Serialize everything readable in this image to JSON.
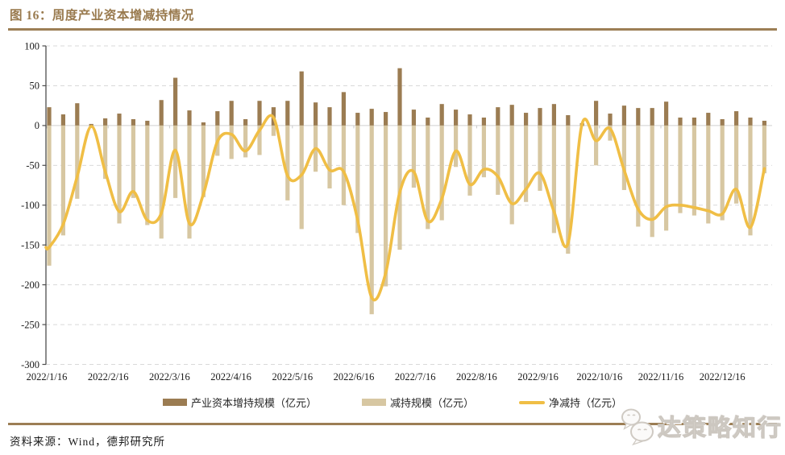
{
  "header": {
    "title": "图 16：周度产业资本增减持情况"
  },
  "source": {
    "text": "资料来源：Wind，德邦研究所"
  },
  "watermark": {
    "text": "达策略知行",
    "icon": "wechat-chat-bubbles-icon"
  },
  "colors": {
    "accent_brown": "#9C7E55",
    "title_brown": "#997A4E",
    "increase_bar": "#9B7C52",
    "decrease_bar": "#D7C7A2",
    "net_line": "#F0BE45",
    "grid": "#D9D9D9",
    "axis": "#4D4D4D",
    "tick_text": "#1A1A1A"
  },
  "chart_data": {
    "type": "bar",
    "subtype": "weekly paired positive/negative bars with smoothed net line",
    "title": "周度产业资本增减持情况",
    "xlabel": "",
    "ylabel": "",
    "ylim": [
      -300,
      100
    ],
    "y_ticks": [
      100,
      50,
      0,
      -50,
      -100,
      -150,
      -200,
      -250,
      -300
    ],
    "x_tick_labels": [
      "2022/1/16",
      "2022/2/16",
      "2022/3/16",
      "2022/4/16",
      "2022/5/16",
      "2022/6/16",
      "2022/7/16",
      "2022/8/16",
      "2022/9/16",
      "2022/10/16",
      "2022/11/16",
      "2022/12/16"
    ],
    "grid": "horizontal dashed, solid light zero line",
    "legend_position": "bottom",
    "n_weeks": 52,
    "series": [
      {
        "name": "产业资本增持规模（亿元）",
        "type": "bar",
        "color": "#9B7C52",
        "values": [
          23,
          14,
          28,
          2,
          9,
          15,
          8,
          6,
          32,
          60,
          19,
          4,
          18,
          31,
          8,
          31,
          23,
          31,
          68,
          29,
          23,
          42,
          16,
          21,
          17,
          72,
          20,
          10,
          27,
          20,
          14,
          10,
          23,
          26,
          16,
          22,
          27,
          13,
          3,
          31,
          15,
          25,
          22,
          22,
          30,
          10,
          10,
          16,
          8,
          18,
          10,
          6
        ]
      },
      {
        "name": "减持规模（亿元）",
        "type": "bar",
        "color": "#D7C7A2",
        "values": [
          -176,
          -138,
          -92,
          -3,
          -67,
          -123,
          -91,
          -125,
          -142,
          -91,
          -142,
          -90,
          -38,
          -42,
          -40,
          -37,
          -13,
          -94,
          -130,
          -58,
          -79,
          -100,
          -135,
          -237,
          -202,
          -156,
          -78,
          -130,
          -119,
          -52,
          -88,
          -65,
          -87,
          -124,
          -96,
          -82,
          -135,
          -161,
          -1,
          -50,
          -19,
          -81,
          -127,
          -140,
          -132,
          -110,
          -113,
          -123,
          -119,
          -98,
          -138,
          -60
        ]
      },
      {
        "name": "净减持（亿元）",
        "type": "line",
        "color": "#F0BE45",
        "values": [
          -153,
          -124,
          -64,
          -1,
          -58,
          -108,
          -83,
          -119,
          -110,
          -31,
          -123,
          -86,
          -20,
          -11,
          -32,
          -6,
          10,
          -63,
          -62,
          -29,
          -56,
          -58,
          -119,
          -216,
          -185,
          -84,
          -58,
          -120,
          -92,
          -32,
          -74,
          -55,
          -64,
          -98,
          -80,
          -60,
          -108,
          -148,
          2,
          -19,
          -4,
          -56,
          -105,
          -118,
          -102,
          -100,
          -103,
          -107,
          -111,
          -80,
          -128,
          -54
        ]
      }
    ]
  }
}
